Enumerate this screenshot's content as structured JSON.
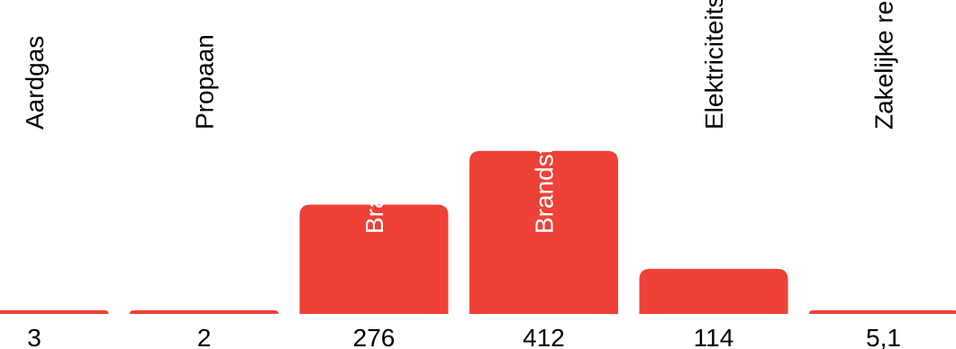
{
  "chart_data": {
    "type": "bar",
    "categories": [
      "Aardgas",
      "Propaan",
      "Brandstof wagenpark",
      "Brandstof materieel",
      "Elektriciteitsverbruik",
      "Zakelijke reizen"
    ],
    "values": [
      3,
      2,
      276,
      412,
      114,
      5.1
    ],
    "value_labels": [
      "3",
      "2",
      "276",
      "412",
      "114",
      "5,1"
    ],
    "colors": {
      "bar": "#EE4137",
      "label_dark": "#000000",
      "label_light": "#ffffff"
    },
    "title": "",
    "xlabel": "",
    "ylabel": "",
    "grid": false,
    "legend": "none"
  }
}
